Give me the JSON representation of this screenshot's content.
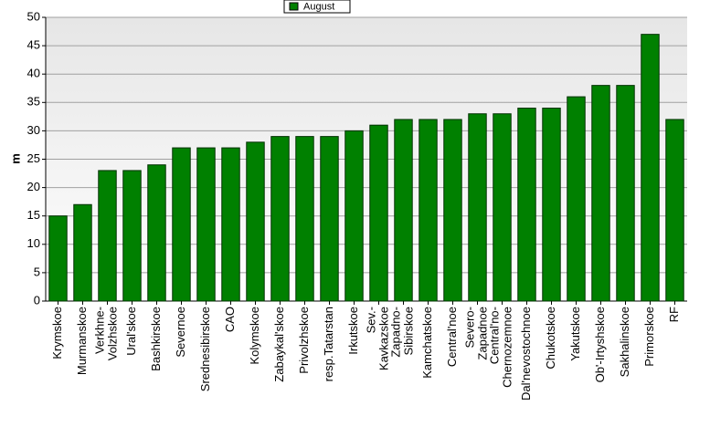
{
  "chart_data": {
    "type": "bar",
    "y_label": "m",
    "categories": [
      "Krymskoe",
      "Murmanskoe",
      "Verkhne-Volzhskoe",
      "Ural'skoe",
      "Bashkirskoe",
      "Severnoe",
      "Srednesibirskoe",
      "CAO",
      "Kolymskoe",
      "Zabaykal'skoe",
      "Privolzhskoe",
      "resp.Tatarstan",
      "Irkutskoe",
      "Sev.-Kavkazskoe",
      "Zapadno-Sibirskoe",
      "Kamchatskoe",
      "Central'noe",
      "Severo-Zapadnoe",
      "Central'no-Chernozemnoe",
      "Dal'nevostochnoe",
      "Chukotskoe",
      "Yakutskoe",
      "Ob'-Irtyshskoe",
      "Sakhalinskoe",
      "Primorskoe",
      "RF"
    ],
    "series": [
      {
        "name": "August",
        "color": "#008000",
        "values": [
          15,
          17,
          23,
          23,
          24,
          27,
          27,
          27,
          28,
          29,
          29,
          29,
          30,
          31,
          32,
          32,
          32,
          33,
          33,
          34,
          34,
          36,
          38,
          38,
          47,
          32
        ]
      }
    ],
    "ylim": [
      0,
      50
    ],
    "yticks": [
      0,
      5,
      10,
      15,
      20,
      25,
      30,
      35,
      40,
      45,
      50
    ],
    "grid": true,
    "legend": "top"
  }
}
